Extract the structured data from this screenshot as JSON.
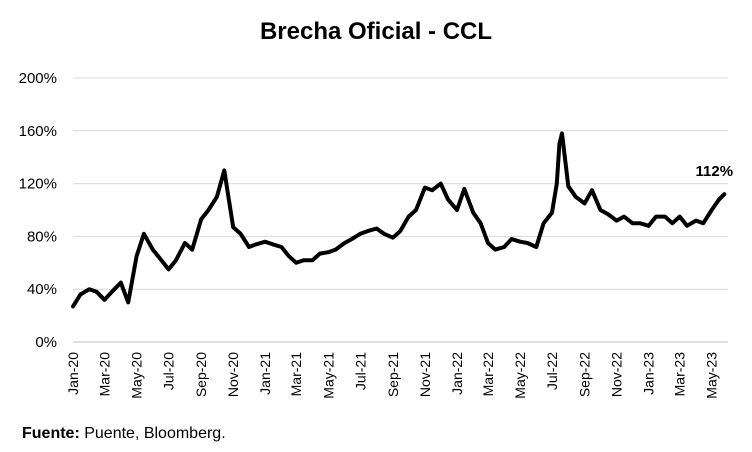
{
  "chart_data": {
    "type": "line",
    "title": "Brecha Oficial - CCL",
    "xlabel": "",
    "ylabel": "",
    "ylim": [
      0,
      200
    ],
    "yticks": [
      "0%",
      "40%",
      "80%",
      "120%",
      "160%",
      "200%"
    ],
    "ytick_values": [
      0,
      40,
      80,
      120,
      160,
      200
    ],
    "xticks": [
      "Jan-20",
      "Mar-20",
      "May-20",
      "Jul-20",
      "Sep-20",
      "Nov-20",
      "Jan-21",
      "Mar-21",
      "May-21",
      "Jul-21",
      "Sep-21",
      "Nov-21",
      "Jan-22",
      "Mar-22",
      "May-22",
      "Jul-22",
      "Sep-22",
      "Nov-22",
      "Jan-23",
      "Mar-23",
      "May-23"
    ],
    "grid": true,
    "line_color": "#000000",
    "annotation": "112%",
    "series": [
      {
        "x": [
          "2020-01-01",
          "2020-01-15",
          "2020-02-01",
          "2020-02-15",
          "2020-03-01",
          "2020-03-15",
          "2020-04-01",
          "2020-04-15",
          "2020-05-01",
          "2020-05-15",
          "2020-06-01",
          "2020-06-15",
          "2020-07-01",
          "2020-07-15",
          "2020-08-01",
          "2020-08-15",
          "2020-09-01",
          "2020-09-15",
          "2020-10-01",
          "2020-10-15",
          "2020-10-22",
          "2020-11-01",
          "2020-11-15",
          "2020-12-01",
          "2020-12-15",
          "2021-01-01",
          "2021-01-15",
          "2021-02-01",
          "2021-02-15",
          "2021-03-01",
          "2021-03-15",
          "2021-04-01",
          "2021-04-15",
          "2021-05-01",
          "2021-05-15",
          "2021-06-01",
          "2021-06-15",
          "2021-07-01",
          "2021-07-15",
          "2021-08-01",
          "2021-08-15",
          "2021-09-01",
          "2021-09-15",
          "2021-10-01",
          "2021-10-15",
          "2021-11-01",
          "2021-11-15",
          "2021-12-01",
          "2021-12-15",
          "2022-01-01",
          "2022-01-15",
          "2022-02-01",
          "2022-02-15",
          "2022-03-01",
          "2022-03-15",
          "2022-04-01",
          "2022-04-15",
          "2022-05-01",
          "2022-05-15",
          "2022-06-01",
          "2022-06-15",
          "2022-07-01",
          "2022-07-10",
          "2022-07-15",
          "2022-07-20",
          "2022-08-01",
          "2022-08-15",
          "2022-09-01",
          "2022-09-15",
          "2022-10-01",
          "2022-10-15",
          "2022-11-01",
          "2022-11-15",
          "2022-12-01",
          "2022-12-15",
          "2023-01-01",
          "2023-01-15",
          "2023-02-01",
          "2023-02-15",
          "2023-03-01",
          "2023-03-15",
          "2023-04-01",
          "2023-04-15",
          "2023-05-01",
          "2023-05-15",
          "2023-05-25"
        ],
        "y": [
          27,
          36,
          40,
          38,
          32,
          38,
          45,
          30,
          65,
          82,
          70,
          63,
          55,
          62,
          75,
          70,
          93,
          100,
          110,
          130,
          112,
          87,
          82,
          72,
          74,
          76,
          74,
          72,
          65,
          60,
          62,
          62,
          67,
          68,
          70,
          75,
          78,
          82,
          84,
          86,
          82,
          79,
          84,
          95,
          100,
          117,
          115,
          120,
          108,
          100,
          116,
          98,
          90,
          75,
          70,
          72,
          78,
          76,
          75,
          72,
          90,
          98,
          120,
          150,
          158,
          118,
          110,
          105,
          115,
          100,
          97,
          92,
          95,
          90,
          90,
          88,
          95,
          95,
          90,
          95,
          88,
          92,
          90,
          100,
          108,
          112
        ]
      }
    ]
  },
  "source": {
    "label": "Fuente:",
    "text": " Puente, Bloomberg."
  }
}
